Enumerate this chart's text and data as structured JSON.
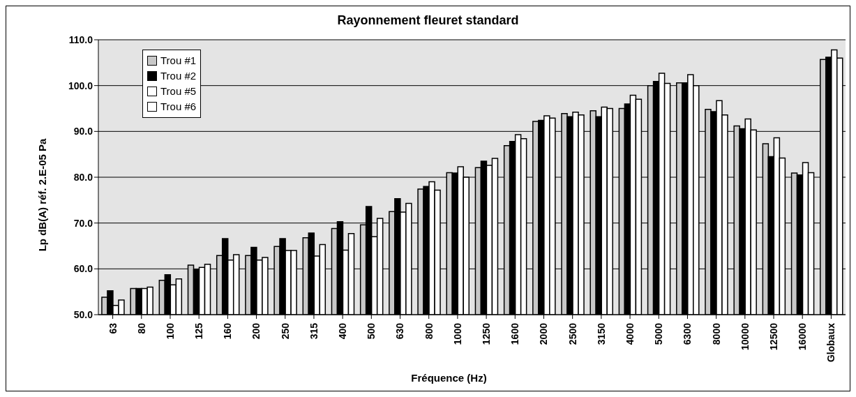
{
  "chart_data": {
    "type": "bar",
    "title": "Rayonnement fleuret standard",
    "xlabel": "Fréquence (Hz)",
    "ylabel": "Lp dB(A) réf. 2.E-05 Pa",
    "categories": [
      "63",
      "80",
      "100",
      "125",
      "160",
      "200",
      "250",
      "315",
      "400",
      "500",
      "630",
      "800",
      "1000",
      "1250",
      "1600",
      "2000",
      "2500",
      "3150",
      "4000",
      "5000",
      "6300",
      "8000",
      "10000",
      "12500",
      "16000",
      "Globaux"
    ],
    "series": [
      {
        "name": "Trou #1",
        "color": "#c8c8c8",
        "values": [
          53.8,
          55.7,
          57.5,
          60.8,
          62.9,
          62.9,
          64.9,
          66.8,
          68.8,
          69.6,
          72.5,
          77.4,
          81.0,
          82.1,
          86.9,
          92.2,
          93.9,
          94.5,
          95.0,
          100.0,
          100.6,
          94.8,
          91.2,
          87.3,
          80.9,
          105.7
        ]
      },
      {
        "name": "Trou #2",
        "color": "#000000",
        "values": [
          55.2,
          55.7,
          58.7,
          59.8,
          66.6,
          64.7,
          66.6,
          67.8,
          70.3,
          73.6,
          75.3,
          78.0,
          80.9,
          83.5,
          87.8,
          92.4,
          93.2,
          93.2,
          96.0,
          100.9,
          100.6,
          94.3,
          90.6,
          84.5,
          80.5,
          106.2
        ]
      },
      {
        "name": "Trou #5",
        "color": "#ffffff",
        "values": [
          52.0,
          55.7,
          56.5,
          60.3,
          61.9,
          61.9,
          64.0,
          62.8,
          64.1,
          67.0,
          72.4,
          79.0,
          82.3,
          82.6,
          89.3,
          93.4,
          94.2,
          95.3,
          97.9,
          102.7,
          102.4,
          96.7,
          92.7,
          88.6,
          83.2,
          107.8
        ]
      },
      {
        "name": "Trou #6",
        "color": "#ffffff",
        "values": [
          53.2,
          56.0,
          57.8,
          61.0,
          63.1,
          62.5,
          64.0,
          65.3,
          67.7,
          71.0,
          74.3,
          77.2,
          80.0,
          84.1,
          88.4,
          92.9,
          93.6,
          95.0,
          97.0,
          100.5,
          100.0,
          93.6,
          90.3,
          84.2,
          81.0,
          106.0
        ]
      }
    ],
    "ylim": [
      50,
      110
    ],
    "yticks": [
      {
        "value": 50,
        "label": "50.0"
      },
      {
        "value": 60,
        "label": "60.0"
      },
      {
        "value": 70,
        "label": "70.0"
      },
      {
        "value": 80,
        "label": "80.0"
      },
      {
        "value": 90,
        "label": "90.0"
      },
      {
        "value": 100,
        "label": "100.0"
      },
      {
        "value": 110,
        "label": "110.0"
      }
    ],
    "grid": "y",
    "legend": "top left"
  }
}
